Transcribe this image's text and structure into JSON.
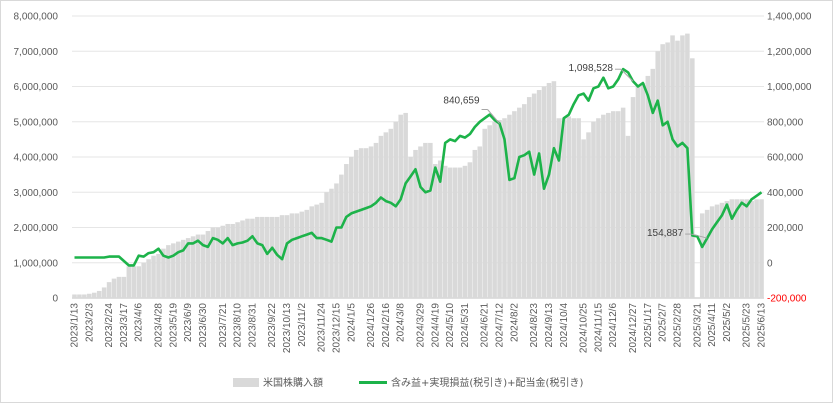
{
  "chart_data": {
    "type": "bar+line",
    "title": "",
    "legend": {
      "position": "bottom",
      "entries": [
        "米国株購入額",
        "含み益+実現損益(税引き)+配当金(税引き)"
      ]
    },
    "colors": {
      "bar": "#d9d9d9",
      "line": "#1db34a",
      "negative_tick": "#ff0000",
      "annotation_line": "#a6a6a6"
    },
    "y_left": {
      "min": 0,
      "max": 8000000,
      "ticks": [
        "0",
        "1,000,000",
        "2,000,000",
        "3,000,000",
        "4,000,000",
        "5,000,000",
        "6,000,000",
        "7,000,000",
        "8,000,000"
      ]
    },
    "y_right": {
      "min": -200000,
      "max": 1400000,
      "ticks": [
        "-200,000",
        "0",
        "200,000",
        "400,000",
        "600,000",
        "800,000",
        "1,000,000",
        "1,200,000",
        "1,400,000"
      ]
    },
    "x_tick_labels": [
      "2023/1/13",
      "2023/2/3",
      "2023/2/24",
      "2023/3/17",
      "2023/4/6",
      "2023/4/28",
      "2023/5/19",
      "2023/6/9",
      "2023/6/30",
      "2023/7/21",
      "2023/8/10",
      "2023/8/31",
      "2023/9/22",
      "2023/10/13",
      "2023/11/2",
      "2023/11/24",
      "2023/12/15",
      "2024/1/5",
      "2024/1/26",
      "2024/2/16",
      "2024/3/8",
      "2024/3/29",
      "2024/4/19",
      "2024/5/10",
      "2024/5/31",
      "2024/6/21",
      "2024/7/12",
      "2024/8/2",
      "2024/8/23",
      "2024/9/13",
      "2024/10/4",
      "2024/10/25",
      "2024/11/15",
      "2024/12/6",
      "2024/12/27",
      "2025/1/17",
      "2025/2/7",
      "2025/2/28",
      "2025/3/21",
      "2025/4/11",
      "2025/5/2",
      "2025/5/23",
      "2025/6/13"
    ],
    "annotations": [
      {
        "text": "840,659",
        "index": 86
      },
      {
        "text": "1,098,528",
        "index": 113
      },
      {
        "text": "154,887",
        "index": 128
      }
    ],
    "series": [
      {
        "name": "米国株購入額",
        "axis": "left",
        "kind": "bar",
        "values": [
          100000,
          100000,
          100000,
          120000,
          150000,
          200000,
          300000,
          450000,
          550000,
          600000,
          600000,
          900000,
          900000,
          900000,
          1000000,
          1100000,
          1200000,
          1250000,
          1400000,
          1500000,
          1550000,
          1600000,
          1650000,
          1700000,
          1750000,
          1800000,
          1800000,
          1900000,
          2000000,
          2000000,
          2050000,
          2100000,
          2100000,
          2150000,
          2200000,
          2250000,
          2250000,
          2300000,
          2300000,
          2300000,
          2300000,
          2300000,
          2350000,
          2350000,
          2400000,
          2400000,
          2450000,
          2500000,
          2600000,
          2650000,
          2700000,
          3000000,
          3100000,
          3250000,
          3500000,
          3800000,
          4000000,
          4200000,
          4250000,
          4250000,
          4300000,
          4400000,
          4600000,
          4700000,
          4800000,
          5000000,
          5200000,
          5250000,
          4000000,
          4200000,
          4300000,
          4400000,
          4400000,
          3800000,
          3900000,
          3750000,
          3700000,
          3700000,
          3700000,
          3750000,
          3850000,
          4200000,
          4300000,
          4800000,
          4900000,
          5000000,
          5050000,
          5100000,
          5200000,
          5300000,
          5400000,
          5500000,
          5700000,
          5800000,
          5900000,
          6000000,
          6100000,
          6150000,
          5100000,
          5100000,
          5150000,
          5100000,
          5100000,
          4500000,
          4700000,
          5000000,
          5100000,
          5200000,
          5250000,
          5300000,
          5300000,
          5400000,
          4600000,
          5700000,
          6000000,
          6100000,
          6300000,
          6500000,
          7000000,
          7200000,
          7250000,
          7450000,
          7300000,
          7450000,
          7500000,
          6800000,
          0,
          2400000,
          2500000,
          2600000,
          2650000,
          2700000,
          2750000,
          2800000,
          2800000,
          2800000,
          2800000,
          2750000,
          2800000,
          2800000
        ]
      },
      {
        "name": "含み益+実現損益(税引き)+配当金(税引き)",
        "axis": "right",
        "kind": "line",
        "values": [
          30000,
          30000,
          30000,
          30000,
          30000,
          30000,
          30000,
          35000,
          35000,
          35000,
          10000,
          -15000,
          -15000,
          40000,
          35000,
          55000,
          60000,
          80000,
          40000,
          30000,
          40000,
          60000,
          70000,
          110000,
          110000,
          125000,
          100000,
          90000,
          140000,
          130000,
          110000,
          140000,
          100000,
          110000,
          115000,
          125000,
          150000,
          110000,
          100000,
          50000,
          85000,
          45000,
          20000,
          110000,
          130000,
          140000,
          150000,
          160000,
          170000,
          140000,
          140000,
          130000,
          120000,
          200000,
          200000,
          260000,
          280000,
          290000,
          300000,
          310000,
          320000,
          340000,
          370000,
          350000,
          340000,
          320000,
          360000,
          450000,
          490000,
          530000,
          430000,
          400000,
          410000,
          540000,
          460000,
          680000,
          700000,
          690000,
          720000,
          710000,
          730000,
          770000,
          800000,
          820000,
          840659,
          810000,
          790000,
          700000,
          470000,
          480000,
          600000,
          610000,
          630000,
          500000,
          620000,
          420000,
          500000,
          650000,
          580000,
          820000,
          840000,
          900000,
          950000,
          960000,
          920000,
          990000,
          1000000,
          1050000,
          990000,
          1000000,
          1040000,
          1098528,
          1080000,
          1030000,
          1000000,
          1020000,
          950000,
          850000,
          920000,
          780000,
          800000,
          700000,
          660000,
          680000,
          650000,
          154887,
          150000,
          90000,
          140000,
          190000,
          230000,
          270000,
          330000,
          250000,
          300000,
          340000,
          320000,
          360000,
          380000,
          400000
        ]
      }
    ]
  }
}
